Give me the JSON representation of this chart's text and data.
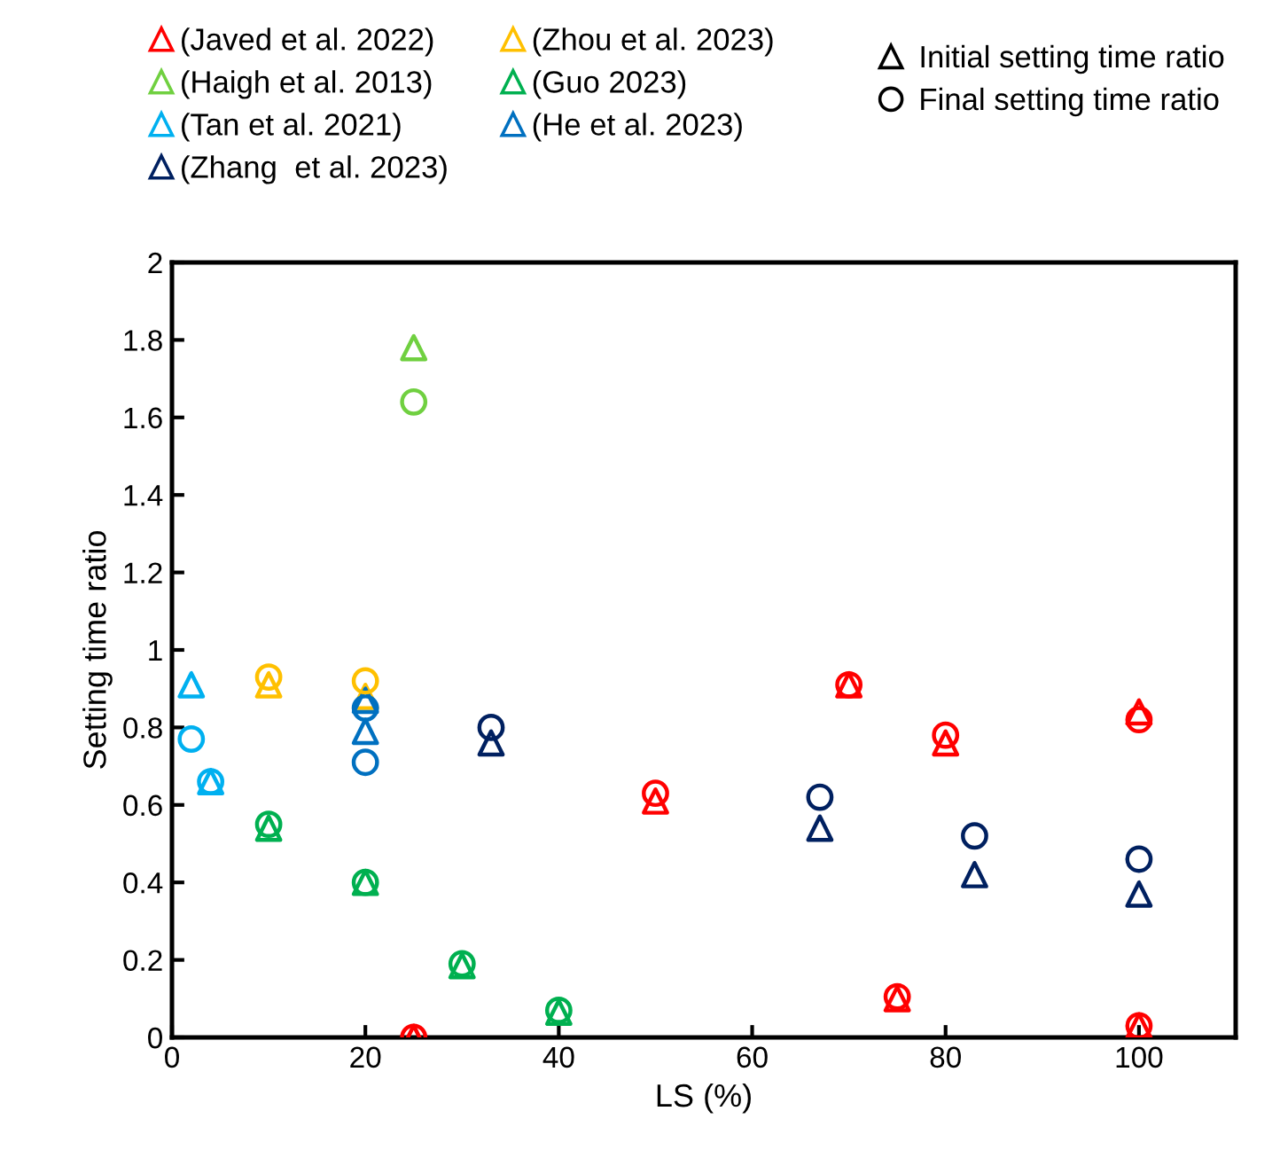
{
  "chart_data": {
    "type": "scatter",
    "xlabel": "LS (%)",
    "ylabel": "Setting time ratio",
    "xlim": [
      0,
      110
    ],
    "xticks": [
      0,
      20,
      40,
      60,
      80,
      100
    ],
    "ylim": [
      0,
      2
    ],
    "yticks": [
      0,
      0.2,
      0.4,
      0.6,
      0.8,
      1,
      1.2,
      1.4,
      1.6,
      1.8,
      2
    ],
    "grid": false,
    "legend": "top",
    "series": [
      {
        "name": "(Javed et al. 2022)",
        "color": "#ff0000",
        "marker": "triangle",
        "x": [
          25,
          50,
          70,
          75,
          80,
          100,
          100
        ],
        "values": [
          0,
          0.61,
          0.91,
          0.1,
          0.76,
          0.84,
          0.03
        ]
      },
      {
        "name": "(Zhou et al. 2023)",
        "color": "#ffc000",
        "marker": "triangle",
        "x": [
          10,
          20
        ],
        "values": [
          0.91,
          0.88
        ]
      },
      {
        "name": "(Haigh et al. 2013)",
        "color": "#70d040",
        "marker": "triangle",
        "x": [
          25
        ],
        "values": [
          1.78
        ]
      },
      {
        "name": "(Guo 2023)",
        "color": "#00b050",
        "marker": "triangle",
        "x": [
          10,
          20,
          30,
          40
        ],
        "values": [
          0.54,
          0.4,
          0.185,
          0.065
        ]
      },
      {
        "name": "(Tan et al. 2021)",
        "color": "#00b0f0",
        "marker": "triangle",
        "x": [
          2,
          4
        ],
        "values": [
          0.91,
          0.66
        ]
      },
      {
        "name": "(He et al. 2023)",
        "color": "#0070c0",
        "marker": "triangle",
        "x": [
          20,
          20
        ],
        "values": [
          0.87,
          0.79
        ]
      },
      {
        "name": "(Zhang  et al. 2023)",
        "color": "#002060",
        "marker": "triangle",
        "x": [
          33,
          67,
          83,
          100
        ],
        "values": [
          0.76,
          0.54,
          0.42,
          0.37
        ]
      },
      {
        "color": "#ff0000",
        "marker": "circle",
        "x": [
          25,
          50,
          70,
          75,
          80,
          100,
          100
        ],
        "values": [
          0,
          0.63,
          0.91,
          0.105,
          0.78,
          0.82,
          0.03
        ]
      },
      {
        "color": "#ffc000",
        "marker": "circle",
        "x": [
          10,
          20
        ],
        "values": [
          0.93,
          0.92
        ]
      },
      {
        "color": "#70d040",
        "marker": "circle",
        "x": [
          25
        ],
        "values": [
          1.64
        ]
      },
      {
        "color": "#00b050",
        "marker": "circle",
        "x": [
          10,
          20,
          30,
          40
        ],
        "values": [
          0.55,
          0.4,
          0.19,
          0.07
        ]
      },
      {
        "color": "#00b0f0",
        "marker": "circle",
        "x": [
          2,
          4
        ],
        "values": [
          0.77,
          0.66
        ]
      },
      {
        "color": "#0070c0",
        "marker": "circle",
        "x": [
          20,
          20
        ],
        "values": [
          0.85,
          0.71
        ]
      },
      {
        "color": "#002060",
        "marker": "circle",
        "x": [
          33,
          67,
          83,
          100
        ],
        "values": [
          0.8,
          0.62,
          0.52,
          0.46
        ]
      },
      {
        "name": "Initial setting time ratio",
        "color": "#000000",
        "marker": "triangle"
      },
      {
        "name": "Final setting time ratio",
        "color": "#000000",
        "marker": "circle"
      }
    ]
  }
}
